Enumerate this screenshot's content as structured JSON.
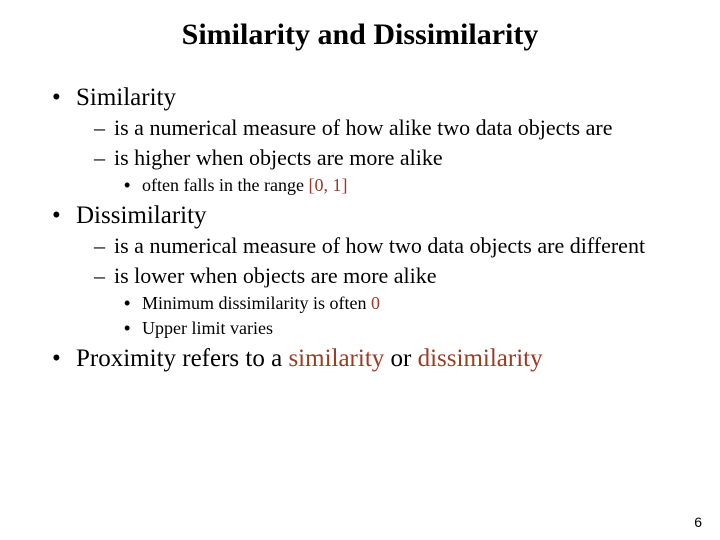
{
  "title": "Similarity and Dissimilarity",
  "colors": {
    "text": "#000000",
    "accent": "#9a3b26",
    "background": "#ffffff"
  },
  "fonts": {
    "body_family": "Times New Roman",
    "title_size_pt": 30,
    "lvl1_size_pt": 25,
    "lvl2_size_pt": 22,
    "lvl3_size_pt": 18
  },
  "bullets": {
    "lvl1": "•",
    "lvl2": "–",
    "lvl3": "•"
  },
  "similarity": {
    "heading": "Similarity",
    "pt1": "is a numerical measure of how alike two data objects are",
    "pt2": "is higher when objects are more alike",
    "note_prefix": "often falls in the range ",
    "note_range": "[0, 1]"
  },
  "dissimilarity": {
    "heading": "Dissimilarity",
    "pt1": "is a numerical measure of how two data objects are different",
    "pt2": "is lower when objects are more alike",
    "note1_prefix": "Minimum dissimilarity is often ",
    "note1_value": "0",
    "note2": "Upper limit varies"
  },
  "proximity": {
    "prefix": "Proximity refers to a ",
    "w1": "similarity",
    "mid": " or ",
    "w2": "dissimilarity"
  },
  "page_number": "6"
}
